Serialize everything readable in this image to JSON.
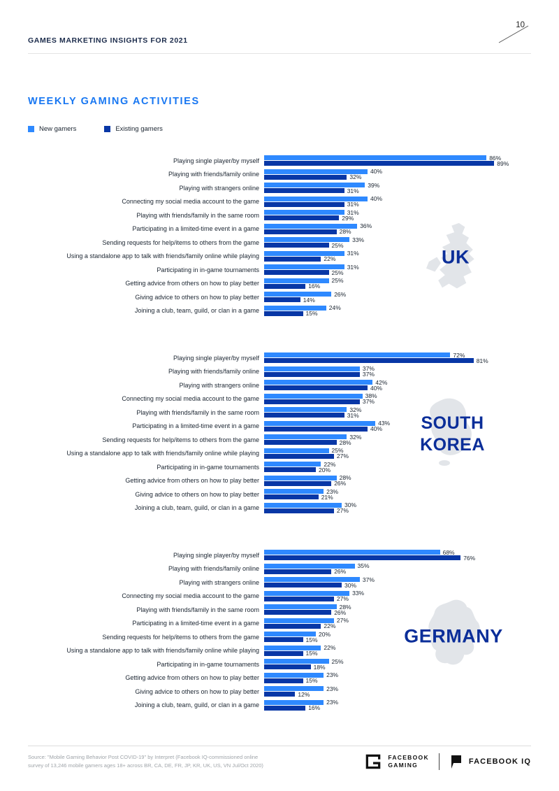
{
  "header": {
    "title": "GAMES MARKETING INSIGHTS FOR 2021",
    "page_number": "10"
  },
  "main": {
    "title": "WEEKLY GAMING ACTIVITIES"
  },
  "legend": [
    {
      "label": "New gamers"
    },
    {
      "label": "Existing gamers"
    }
  ],
  "colors": {
    "new_gamers": "#2E89FF",
    "existing_gamers": "#0837A6",
    "title": "#1877F2",
    "country_label": "#0B2E99",
    "map_fill": "#E2E5E9"
  },
  "chart_data": {
    "type": "bar",
    "orientation": "horizontal",
    "value_format": "percent",
    "xlim": [
      0,
      100
    ],
    "legend": [
      "New gamers",
      "Existing gamers"
    ],
    "legend_position": "top-left",
    "categories": [
      "Playing single player/by myself",
      "Playing with friends/family online",
      "Playing with strangers online",
      "Connecting my social media account to the game",
      "Playing with friends/family in the same room",
      "Participating in a limited-time event in a game",
      "Sending requests for help/items to others from the game",
      "Using a standalone app to talk with friends/family online while playing",
      "Participating in in-game tournaments",
      "Getting advice from others on how to play better",
      "Giving advice to others on how to play better",
      "Joining a club, team, guild, or clan in a game"
    ],
    "charts": [
      {
        "title": "UK",
        "series": [
          {
            "name": "New gamers",
            "values": [
              86,
              40,
              39,
              40,
              31,
              36,
              33,
              31,
              31,
              25,
              26,
              24
            ]
          },
          {
            "name": "Existing gamers",
            "values": [
              89,
              32,
              31,
              31,
              29,
              28,
              25,
              22,
              25,
              16,
              14,
              15
            ]
          }
        ]
      },
      {
        "title": "SOUTH KOREA",
        "series": [
          {
            "name": "New gamers",
            "values": [
              72,
              37,
              42,
              38,
              32,
              43,
              32,
              25,
              22,
              28,
              23,
              30
            ]
          },
          {
            "name": "Existing gamers",
            "values": [
              81,
              37,
              40,
              37,
              31,
              40,
              28,
              27,
              20,
              26,
              21,
              27
            ]
          }
        ]
      },
      {
        "title": "GERMANY",
        "series": [
          {
            "name": "New gamers",
            "values": [
              68,
              35,
              37,
              33,
              28,
              27,
              20,
              22,
              25,
              23,
              23,
              23
            ]
          },
          {
            "name": "Existing gamers",
            "values": [
              76,
              26,
              30,
              27,
              26,
              22,
              15,
              15,
              18,
              15,
              12,
              16
            ]
          }
        ]
      }
    ]
  },
  "footer": {
    "source_line1": "Source: \"Mobile Gaming Behavior Post COVID-19\" by Interpret (Facebook IQ-commissioned online",
    "source_line2": "survey of 13,246 mobile gamers ages 18+ across BR, CA, DE, FR, JP, KR, UK, US, VN Jul/Oct 2020)",
    "gaming_logo_line1": "FACEBOOK",
    "gaming_logo_line2": "GAMING",
    "iq_logo_text": "FACEBOOK IQ"
  }
}
